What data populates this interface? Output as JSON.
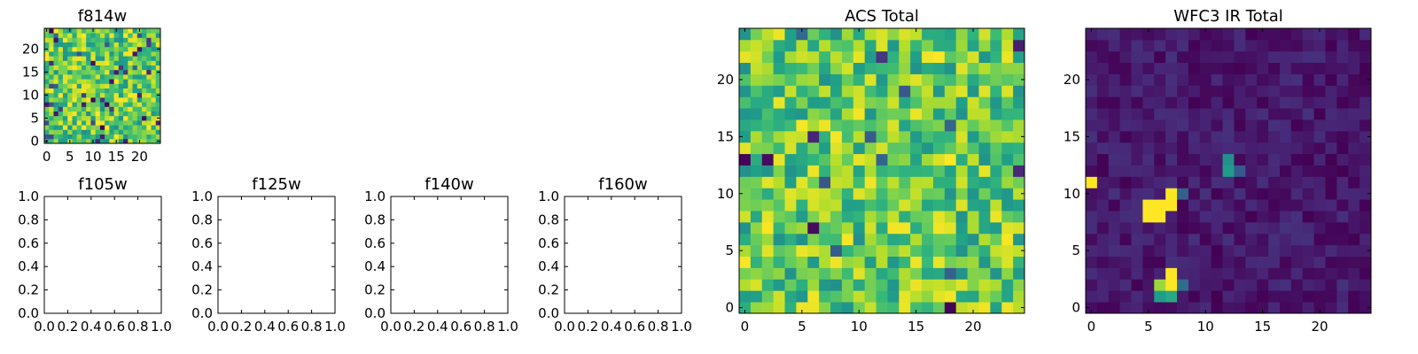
{
  "chart_data": [
    {
      "type": "heatmap",
      "title": "f814w",
      "grid_size": 25,
      "xlim": [
        -0.5,
        24.5
      ],
      "ylim": [
        -0.5,
        24.5
      ],
      "xticks": [
        0,
        5,
        10,
        15,
        20
      ],
      "yticks": [
        0,
        5,
        10,
        15,
        20
      ],
      "colormap": "viridis",
      "seed": 11,
      "dark_fraction": 0.06,
      "grid": false
    },
    {
      "type": "heatmap",
      "title": "f105w",
      "xlim": [
        0.0,
        1.0
      ],
      "ylim": [
        0.0,
        1.0
      ],
      "xticks": [
        0.0,
        0.2,
        0.4,
        0.6,
        0.8,
        1.0
      ],
      "yticks": [
        0.0,
        0.2,
        0.4,
        0.6,
        0.8,
        1.0
      ],
      "empty": true,
      "grid": false
    },
    {
      "type": "heatmap",
      "title": "f125w",
      "xlim": [
        0.0,
        1.0
      ],
      "ylim": [
        0.0,
        1.0
      ],
      "xticks": [
        0.0,
        0.2,
        0.4,
        0.6,
        0.8,
        1.0
      ],
      "yticks": [
        0.0,
        0.2,
        0.4,
        0.6,
        0.8,
        1.0
      ],
      "empty": true,
      "grid": false
    },
    {
      "type": "heatmap",
      "title": "f140w",
      "xlim": [
        0.0,
        1.0
      ],
      "ylim": [
        0.0,
        1.0
      ],
      "xticks": [
        0.0,
        0.2,
        0.4,
        0.6,
        0.8,
        1.0
      ],
      "yticks": [
        0.0,
        0.2,
        0.4,
        0.6,
        0.8,
        1.0
      ],
      "empty": true,
      "grid": false
    },
    {
      "type": "heatmap",
      "title": "f160w",
      "xlim": [
        0.0,
        1.0
      ],
      "ylim": [
        0.0,
        1.0
      ],
      "xticks": [
        0.0,
        0.2,
        0.4,
        0.6,
        0.8,
        1.0
      ],
      "yticks": [
        0.0,
        0.2,
        0.4,
        0.6,
        0.8,
        1.0
      ],
      "empty": true,
      "grid": false
    },
    {
      "type": "heatmap",
      "title": "ACS Total",
      "grid_size": 25,
      "xlim": [
        -0.5,
        24.5
      ],
      "ylim": [
        -0.5,
        24.5
      ],
      "xticks": [
        0,
        5,
        10,
        15,
        20
      ],
      "yticks": [
        0,
        5,
        10,
        15,
        20
      ],
      "colormap": "viridis",
      "seed": 29,
      "dark_fraction": 0.02,
      "grid": false
    },
    {
      "type": "heatmap",
      "title": "WFC3 IR Total",
      "grid_size": 25,
      "xlim": [
        -0.5,
        24.5
      ],
      "ylim": [
        -0.5,
        24.5
      ],
      "xticks": [
        0,
        5,
        10,
        15,
        20
      ],
      "yticks": [
        0,
        5,
        10,
        15,
        20
      ],
      "colormap": "viridis",
      "seed": 53,
      "background_range": [
        0.0,
        0.14
      ],
      "bright_cells": [
        {
          "x": 0,
          "y": 11,
          "v": 1.0
        },
        {
          "x": 5,
          "y": 8,
          "v": 1.0
        },
        {
          "x": 5,
          "y": 9,
          "v": 1.0
        },
        {
          "x": 6,
          "y": 8,
          "v": 1.0
        },
        {
          "x": 6,
          "y": 9,
          "v": 1.0
        },
        {
          "x": 7,
          "y": 9,
          "v": 1.0
        },
        {
          "x": 7,
          "y": 10,
          "v": 1.0
        },
        {
          "x": 8,
          "y": 10,
          "v": 0.3
        },
        {
          "x": 6,
          "y": 2,
          "v": 0.85
        },
        {
          "x": 7,
          "y": 2,
          "v": 1.0
        },
        {
          "x": 7,
          "y": 3,
          "v": 1.0
        },
        {
          "x": 6,
          "y": 1,
          "v": 0.55
        },
        {
          "x": 7,
          "y": 1,
          "v": 0.6
        },
        {
          "x": 8,
          "y": 2,
          "v": 0.35
        },
        {
          "x": 12,
          "y": 12,
          "v": 0.55
        },
        {
          "x": 12,
          "y": 13,
          "v": 0.5
        },
        {
          "x": 13,
          "y": 12,
          "v": 0.28
        }
      ],
      "grid": false
    }
  ]
}
